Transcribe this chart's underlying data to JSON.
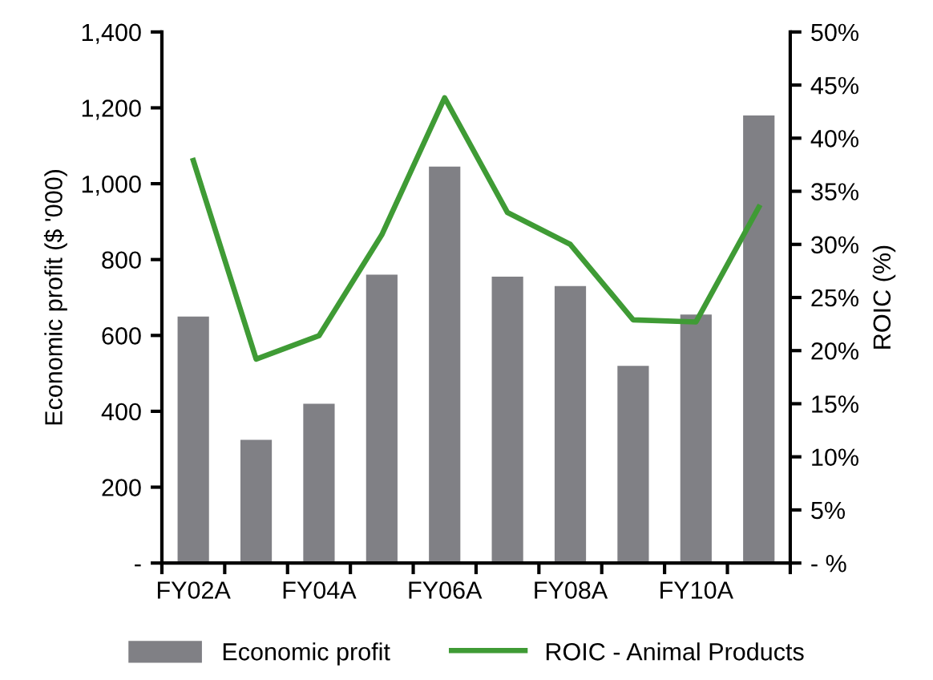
{
  "chart_data": {
    "type": "bar",
    "categories": [
      "FY02A",
      null,
      "FY04A",
      null,
      "FY06A",
      null,
      "FY08A",
      null,
      "FY10A",
      null
    ],
    "series": [
      {
        "name": "Economic profit",
        "color": "#808085",
        "values": [
          650,
          325,
          420,
          760,
          1045,
          755,
          730,
          520,
          655,
          1180
        ]
      },
      {
        "name": "ROIC - Animal Products",
        "type": "line",
        "axis": "y2",
        "color": "#3f9b35",
        "values": [
          37.9,
          19.2,
          21.4,
          30.9,
          43.8,
          33.0,
          30.0,
          22.9,
          22.7,
          33.5
        ]
      }
    ],
    "ylabel": "Economic profit ($ '000)",
    "y2label": "ROIC (%)",
    "ylim": [
      0,
      1400
    ],
    "yticks": [
      {
        "value": 0,
        "label": "-"
      },
      200,
      400,
      600,
      800,
      {
        "value": 1000,
        "label": "1,000"
      },
      {
        "value": 1200,
        "label": "1,200"
      },
      {
        "value": 1400,
        "label": "1,400"
      }
    ],
    "y2lim": [
      0,
      50
    ],
    "y2ticks": [
      {
        "value": 0,
        "label": "- %"
      },
      {
        "value": 5,
        "label": "5%"
      },
      {
        "value": 10,
        "label": "10%"
      },
      {
        "value": 15,
        "label": "15%"
      },
      {
        "value": 20,
        "label": "20%"
      },
      {
        "value": 25,
        "label": "25%"
      },
      {
        "value": 30,
        "label": "30%"
      },
      {
        "value": 35,
        "label": "35%"
      },
      {
        "value": 40,
        "label": "40%"
      },
      {
        "value": 45,
        "label": "45%"
      },
      {
        "value": 50,
        "label": "50%"
      }
    ],
    "legend": "bottom"
  }
}
